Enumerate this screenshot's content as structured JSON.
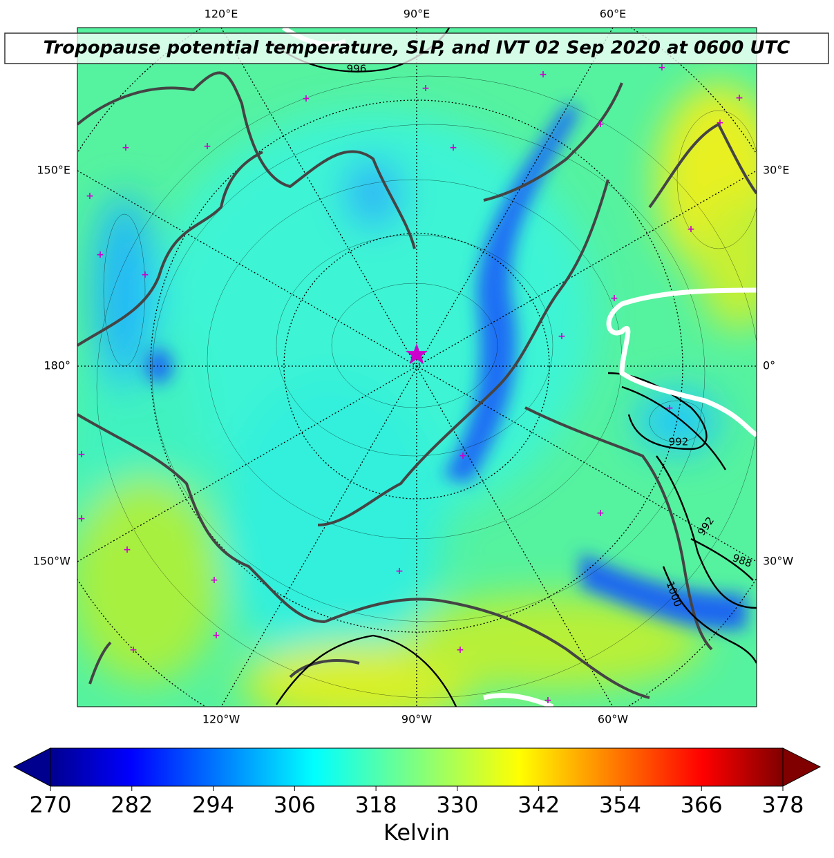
{
  "title": "Tropopause potential temperature, SLP, and IVT 02 Sep 2020 at 0600 UTC",
  "longitude_labels": {
    "top": [
      "120°E",
      "90°E",
      "60°E"
    ],
    "left": [
      "150°E",
      "180°",
      "150°W"
    ],
    "right": [
      "30°E",
      "0°",
      "30°W"
    ],
    "bottom": [
      "120°W",
      "90°W",
      "60°W"
    ]
  },
  "contour_labels": [
    "996",
    "992",
    "992",
    "988",
    "1000"
  ],
  "colorbar": {
    "label": "Kelvin",
    "ticks": [
      270,
      282,
      294,
      306,
      318,
      330,
      342,
      354,
      366,
      378
    ]
  }
}
